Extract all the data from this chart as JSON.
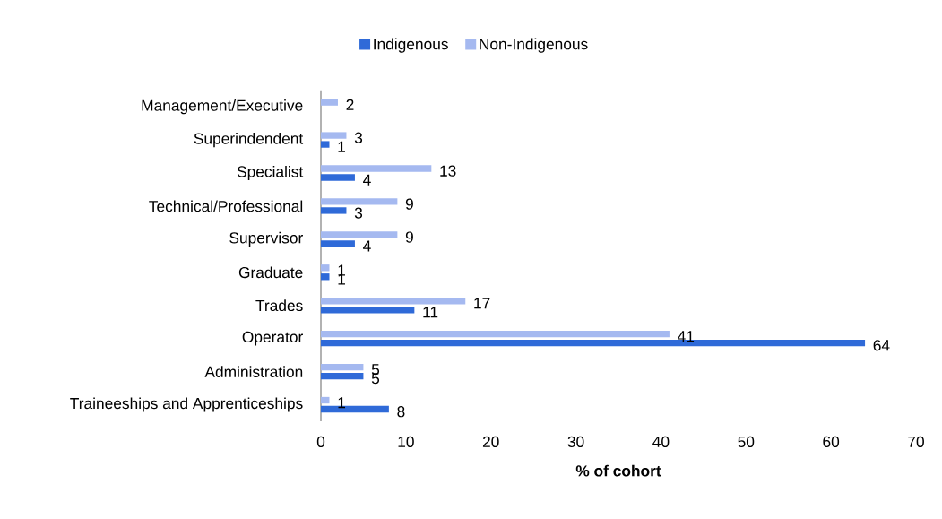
{
  "chart_data": {
    "type": "bar",
    "orientation": "horizontal",
    "xlabel": "% of cohort",
    "categories": [
      "Management/Executive",
      "Superindendent",
      "Specialist",
      "Technical/Professional",
      "Supervisor",
      "Graduate",
      "Trades",
      "Operator",
      "Administration",
      "Traineeships and Apprenticeships"
    ],
    "series": [
      {
        "name": "Indigenous",
        "color": "#2f6ad8",
        "values": [
          null,
          1,
          4,
          3,
          4,
          1,
          11,
          64,
          5,
          8
        ]
      },
      {
        "name": "Non-Indigenous",
        "color": "#a5b9f0",
        "values": [
          2,
          3,
          13,
          9,
          9,
          1,
          17,
          41,
          5,
          1
        ]
      }
    ],
    "xlim": [
      0,
      70
    ],
    "xticks": [
      0,
      10,
      20,
      30,
      40,
      50,
      60,
      70
    ],
    "data_labels": true,
    "legend": "top",
    "grid": false
  }
}
